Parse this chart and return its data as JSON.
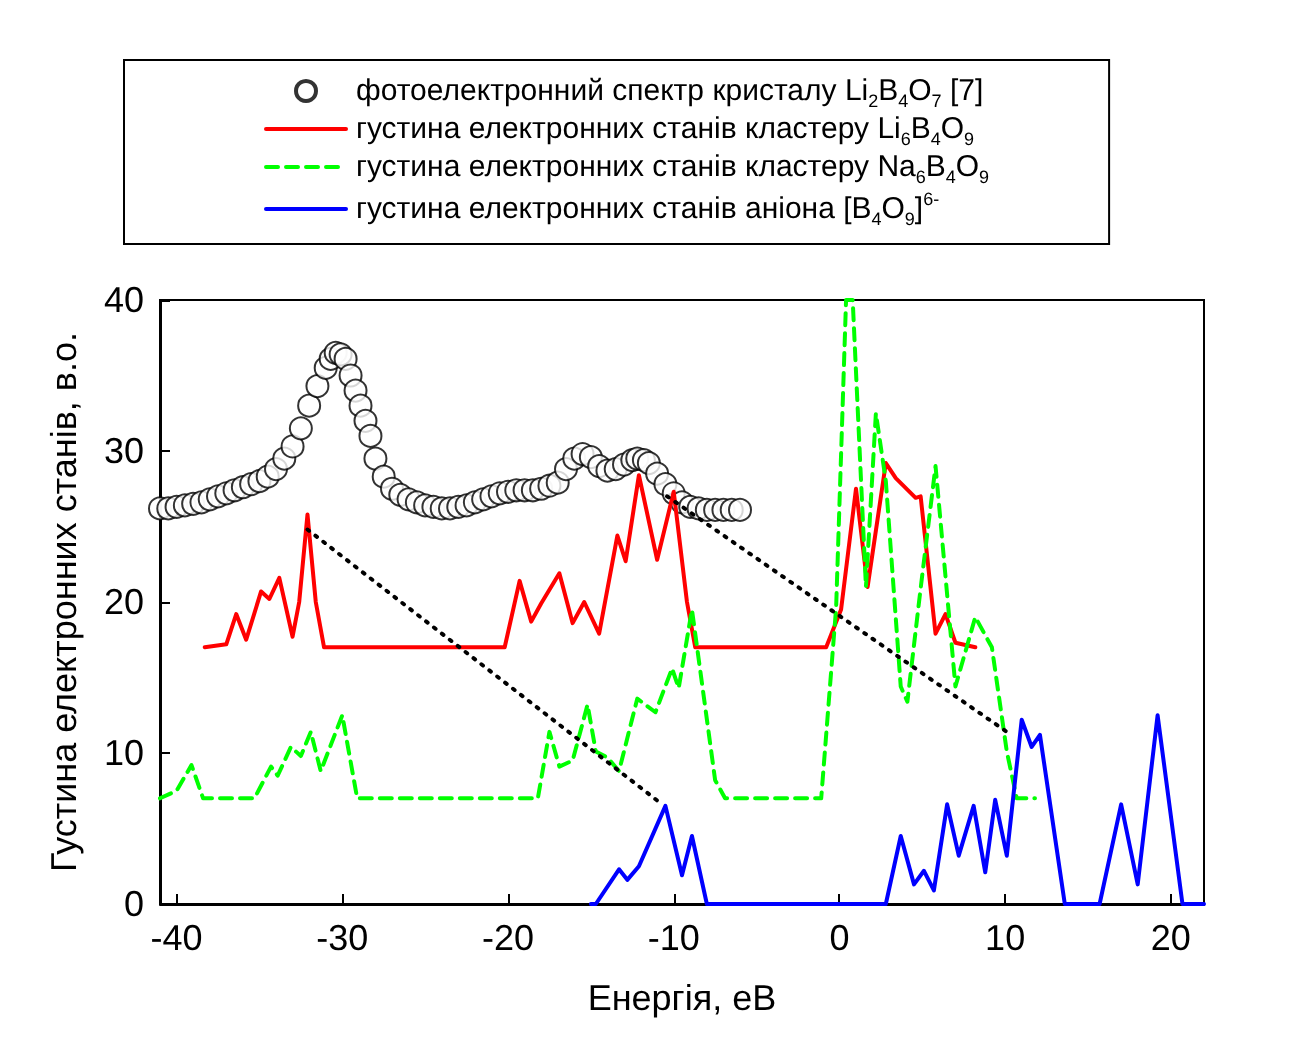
{
  "chart_data": {
    "type": "line",
    "xlabel": "Енергія, еВ",
    "ylabel": "Густина електронних станів, в.о.",
    "xlim": [
      -41,
      22
    ],
    "xticks": [
      -40,
      -30,
      -20,
      -10,
      0,
      10,
      20
    ],
    "ylim": [
      0,
      40
    ],
    "yticks": [
      0,
      10,
      20,
      30,
      40
    ],
    "grid": false,
    "legend": "top",
    "series": [
      {
        "type": "scatter",
        "marker": "circle",
        "name": "фотоелектронний спектр кристалу Li$_{2}$B$_{4}$O$_{7}$ [7]",
        "color": "#000000",
        "x": [
          -41,
          -40.5,
          -40,
          -39.5,
          -39,
          -38.5,
          -38,
          -37.5,
          -37,
          -36.5,
          -36,
          -35.5,
          -35,
          -34.5,
          -34,
          -33.5,
          -33,
          -32.5,
          -32,
          -31.5,
          -31,
          -30.7,
          -30.4,
          -30.1,
          -29.8,
          -29.5,
          -29.2,
          -28.9,
          -28.6,
          -28.3,
          -28,
          -27.5,
          -27,
          -26.5,
          -26,
          -25.5,
          -25,
          -24.5,
          -24,
          -23.5,
          -23,
          -22.5,
          -22,
          -21.5,
          -21,
          -20.5,
          -20,
          -19.5,
          -19,
          -18.5,
          -18,
          -17.5,
          -17,
          -16.5,
          -16,
          -15.5,
          -15,
          -14.5,
          -14,
          -13.5,
          -13,
          -12.5,
          -12.2,
          -11.8,
          -11.5,
          -11,
          -10.5,
          -10,
          -9.5,
          -9,
          -8.5,
          -8,
          -7.5,
          -7,
          -6.5,
          -6
        ],
        "values": [
          26.2,
          26.2,
          26.3,
          26.4,
          26.5,
          26.6,
          26.8,
          27,
          27.2,
          27.4,
          27.6,
          27.8,
          28,
          28.3,
          28.8,
          29.5,
          30.3,
          31.5,
          33,
          34.3,
          35.5,
          36.1,
          36.5,
          36.4,
          36.1,
          35,
          34,
          33,
          32,
          31,
          29.5,
          28.3,
          27.5,
          27.1,
          26.8,
          26.6,
          26.4,
          26.3,
          26.2,
          26.2,
          26.3,
          26.4,
          26.6,
          26.8,
          27,
          27.2,
          27.3,
          27.4,
          27.4,
          27.4,
          27.5,
          27.7,
          27.9,
          28.8,
          29.5,
          29.8,
          29.6,
          29,
          28.7,
          28.8,
          29.1,
          29.4,
          29.5,
          29.4,
          29.2,
          28.5,
          27.8,
          27.2,
          26.6,
          26.3,
          26.2,
          26.1,
          26.1,
          26.1,
          26.1,
          26.1
        ]
      },
      {
        "type": "line",
        "line_style": "solid",
        "name": "густина електронних станів кластеру Li$_{6}$B$_{4}$O$_{9}$",
        "color": "#ff0000",
        "x": [
          -38.3,
          -37,
          -36.4,
          -35.8,
          -34.9,
          -34.4,
          -33.8,
          -33,
          -32.6,
          -32.1,
          -31.6,
          -31.1,
          -20.2,
          -19.3,
          -18.6,
          -18,
          -16.9,
          -16.1,
          -15.4,
          -14.5,
          -13.4,
          -12.9,
          -12.1,
          -11,
          -10,
          -9.2,
          -8.7,
          -0.8,
          0.1,
          1,
          1.7,
          2.8,
          3.4,
          4.6,
          4.9,
          5.8,
          6.4,
          7,
          8.2
        ],
        "values": [
          17,
          17.2,
          19.2,
          17.5,
          20.7,
          20.2,
          21.6,
          17.7,
          20,
          25.8,
          20,
          17,
          17,
          21.4,
          18.7,
          19.9,
          21.9,
          18.6,
          20,
          17.9,
          24.4,
          22.7,
          28.4,
          22.8,
          27.3,
          20,
          17,
          17,
          19.5,
          27.5,
          21,
          29.2,
          28.2,
          26.9,
          27,
          17.9,
          19.2,
          17.3,
          17
        ]
      },
      {
        "type": "line",
        "line_style": "dashed",
        "name": "густина електронних станів кластеру Na$_{6}$B$_{4}$O$_{9}$",
        "color": "#00ff00",
        "x": [
          -41,
          -40,
          -39.1,
          -38.4,
          -35.3,
          -34.3,
          -33.9,
          -33.1,
          -32.5,
          -31.9,
          -31.3,
          -30,
          -29.1,
          -18.2,
          -17.5,
          -16.9,
          -16.1,
          -15.2,
          -14.7,
          -14,
          -13.3,
          -12.2,
          -11.1,
          -10.1,
          -9.7,
          -8.9,
          -7.5,
          -6.9,
          -1.1,
          -0.2,
          0.4,
          0.8,
          1.6,
          2.2,
          2.8,
          3.7,
          4.1,
          4.9,
          5.8,
          7,
          8.2,
          9.2,
          10.1,
          10.7,
          11.8
        ],
        "values": [
          7,
          7.5,
          9.2,
          7,
          7,
          9.1,
          8.5,
          10.4,
          9.8,
          11.4,
          8.8,
          12.5,
          7,
          7,
          11.4,
          9.1,
          9.5,
          13.2,
          10.1,
          9.7,
          8.8,
          13.6,
          12.7,
          15.6,
          14.3,
          19.5,
          8.2,
          7,
          7,
          19.6,
          40,
          40,
          21,
          32.5,
          28,
          14.4,
          13.4,
          20.9,
          29,
          14.4,
          19,
          17,
          10.1,
          7,
          7
        ]
      },
      {
        "type": "line",
        "line_style": "solid",
        "name": "густина електронних станів аніона [B$_{4}$O$_{9}$]$^{6-}$",
        "color": "#0000ff",
        "x": [
          -15,
          -14.7,
          -13.3,
          -12.8,
          -12.1,
          -10.5,
          -9.5,
          -8.9,
          -8,
          2.8,
          3.7,
          4.5,
          5.1,
          5.7,
          6.5,
          7.2,
          8.1,
          8.8,
          9.4,
          10.1,
          11,
          11.6,
          12.1,
          13.6,
          15.7,
          17,
          18,
          19.2,
          20.7,
          22
        ],
        "values": [
          0,
          0,
          2.3,
          1.6,
          2.5,
          6.5,
          1.9,
          4.5,
          0,
          0,
          4.5,
          1.3,
          2.2,
          0.9,
          6.6,
          3.2,
          6.5,
          2.1,
          6.9,
          3.2,
          12.2,
          10.4,
          11.2,
          0,
          0,
          6.6,
          1.3,
          12.5,
          0,
          0
        ]
      },
      {
        "type": "line",
        "line_style": "dotted",
        "color": "#000000",
        "x": [
          -32.1,
          -10.7
        ],
        "values": [
          24.8,
          6.6
        ]
      },
      {
        "type": "line",
        "line_style": "dotted",
        "color": "#000000",
        "x": [
          -10.4,
          10.1
        ],
        "values": [
          27,
          11.4
        ]
      }
    ]
  }
}
